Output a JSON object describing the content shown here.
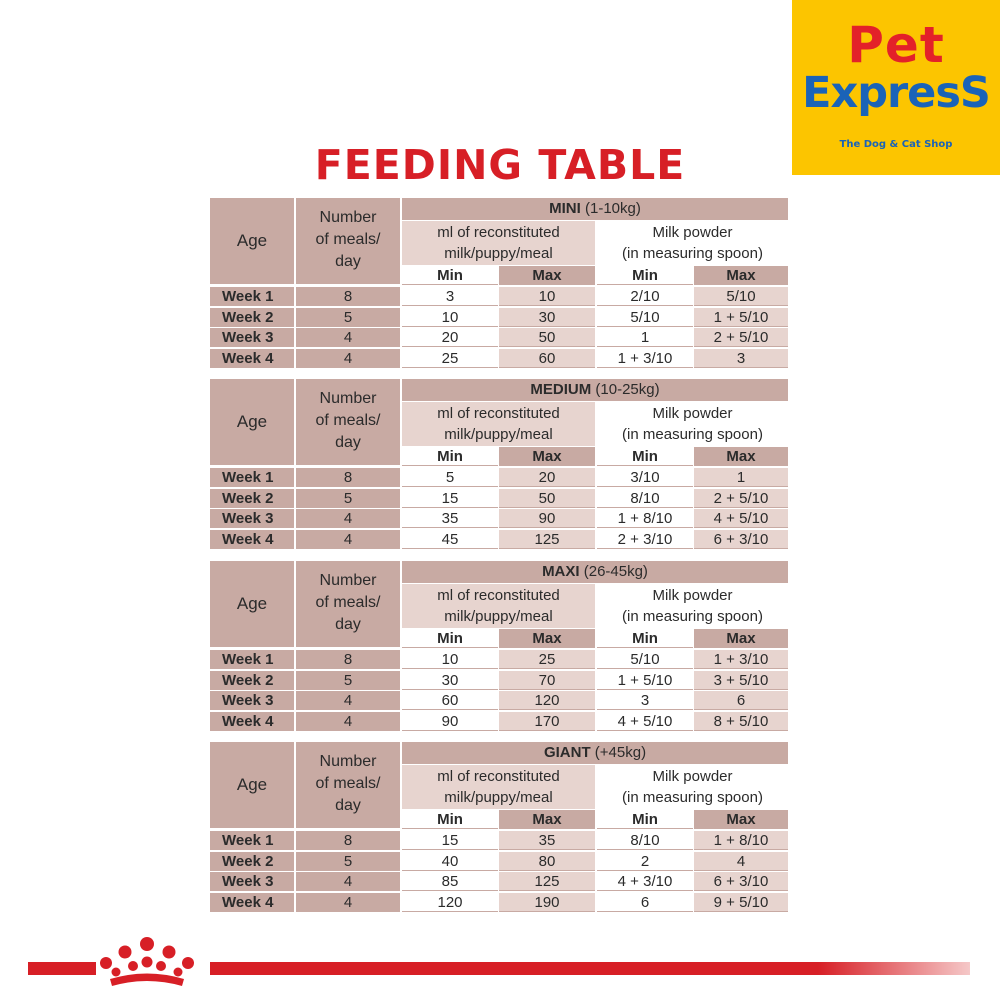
{
  "logo": {
    "line1": "Pet",
    "line2": "ExpresS",
    "tagline": "The Dog & Cat Shop"
  },
  "title": "FEEDING TABLE",
  "headers": {
    "age": "Age",
    "meals_line1": "Number",
    "meals_line2": "of meals/",
    "meals_line3": "day",
    "ml_line1": "ml of reconstituted",
    "ml_line2": "milk/puppy/meal",
    "powder_line1": "Milk powder",
    "powder_line2": "(in measuring spoon)",
    "min": "Min",
    "max": "Max"
  },
  "sections": [
    {
      "size": "MINI",
      "range": "(1-10kg)",
      "rows": [
        {
          "week": "Week 1",
          "meals": "8",
          "ml_min": "3",
          "ml_max": "10",
          "pw_min": "2/10",
          "pw_max": "5/10"
        },
        {
          "week": "Week 2",
          "meals": "5",
          "ml_min": "10",
          "ml_max": "30",
          "pw_min": "5/10",
          "pw_max": "1 + 5/10"
        },
        {
          "week": "Week 3",
          "meals": "4",
          "ml_min": "20",
          "ml_max": "50",
          "pw_min": "1",
          "pw_max": "2 + 5/10"
        },
        {
          "week": "Week 4",
          "meals": "4",
          "ml_min": "25",
          "ml_max": "60",
          "pw_min": "1 + 3/10",
          "pw_max": "3"
        }
      ]
    },
    {
      "size": "MEDIUM",
      "range": "(10-25kg)",
      "rows": [
        {
          "week": "Week 1",
          "meals": "8",
          "ml_min": "5",
          "ml_max": "20",
          "pw_min": "3/10",
          "pw_max": "1"
        },
        {
          "week": "Week 2",
          "meals": "5",
          "ml_min": "15",
          "ml_max": "50",
          "pw_min": "8/10",
          "pw_max": "2 + 5/10"
        },
        {
          "week": "Week 3",
          "meals": "4",
          "ml_min": "35",
          "ml_max": "90",
          "pw_min": "1 + 8/10",
          "pw_max": "4 + 5/10"
        },
        {
          "week": "Week 4",
          "meals": "4",
          "ml_min": "45",
          "ml_max": "125",
          "pw_min": "2 + 3/10",
          "pw_max": "6 + 3/10"
        }
      ]
    },
    {
      "size": "MAXI",
      "range": "(26-45kg)",
      "rows": [
        {
          "week": "Week 1",
          "meals": "8",
          "ml_min": "10",
          "ml_max": "25",
          "pw_min": "5/10",
          "pw_max": "1 + 3/10"
        },
        {
          "week": "Week 2",
          "meals": "5",
          "ml_min": "30",
          "ml_max": "70",
          "pw_min": "1 + 5/10",
          "pw_max": "3 + 5/10"
        },
        {
          "week": "Week 3",
          "meals": "4",
          "ml_min": "60",
          "ml_max": "120",
          "pw_min": "3",
          "pw_max": "6"
        },
        {
          "week": "Week 4",
          "meals": "4",
          "ml_min": "90",
          "ml_max": "170",
          "pw_min": "4 + 5/10",
          "pw_max": "8 + 5/10"
        }
      ]
    },
    {
      "size": "GIANT",
      "range": "(+45kg)",
      "rows": [
        {
          "week": "Week 1",
          "meals": "8",
          "ml_min": "15",
          "ml_max": "35",
          "pw_min": "8/10",
          "pw_max": "1 + 8/10"
        },
        {
          "week": "Week 2",
          "meals": "5",
          "ml_min": "40",
          "ml_max": "80",
          "pw_min": "2",
          "pw_max": "4"
        },
        {
          "week": "Week 3",
          "meals": "4",
          "ml_min": "85",
          "ml_max": "125",
          "pw_min": "4 + 3/10",
          "pw_max": "6 + 3/10"
        },
        {
          "week": "Week 4",
          "meals": "4",
          "ml_min": "120",
          "ml_max": "190",
          "pw_min": "6",
          "pw_max": "9 + 5/10"
        }
      ]
    }
  ],
  "colors": {
    "accent_red": "#d71f26",
    "table_tan": "#c8aaa3",
    "table_pink": "#e7d4cf",
    "logo_yellow": "#fcc500",
    "logo_blue": "#1a63b8"
  }
}
